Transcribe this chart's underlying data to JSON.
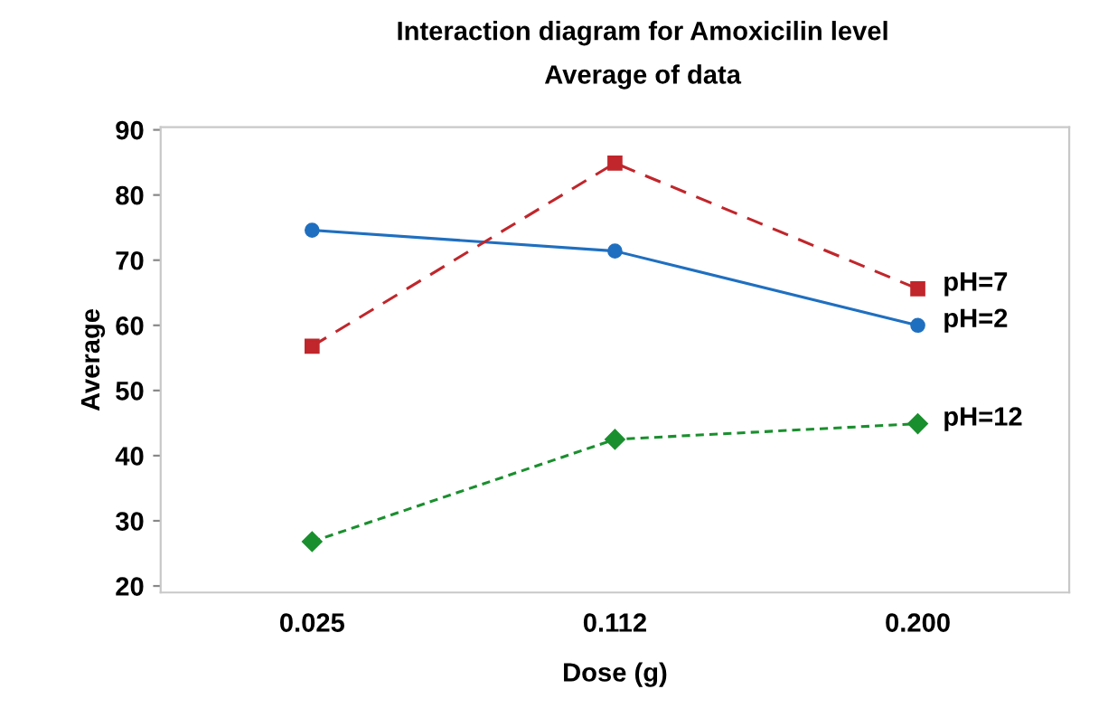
{
  "chart_data": {
    "type": "line",
    "title": "Interaction diagram for Amoxicilin level",
    "subtitle": "Average of data",
    "xlabel": "Dose (g)",
    "ylabel": "Average",
    "categories": [
      "0.025",
      "0.112",
      "0.200"
    ],
    "series": [
      {
        "name": "pH=2",
        "color": "#1f6fc0",
        "values": [
          74.6,
          71.4,
          60.0
        ],
        "marker": "circle",
        "line_style": "solid"
      },
      {
        "name": "pH=7",
        "color": "#c0262b",
        "values": [
          56.8,
          84.9,
          65.6
        ],
        "marker": "square",
        "line_style": "dashed"
      },
      {
        "name": "pH=12",
        "color": "#1a8f2e",
        "values": [
          26.8,
          42.5,
          44.9
        ],
        "marker": "diamond",
        "line_style": "dotted"
      }
    ],
    "ylim": [
      19,
      90.4
    ],
    "yticks": [
      20,
      30,
      40,
      50,
      60,
      70,
      80,
      90
    ],
    "grid": false,
    "legend": false
  }
}
